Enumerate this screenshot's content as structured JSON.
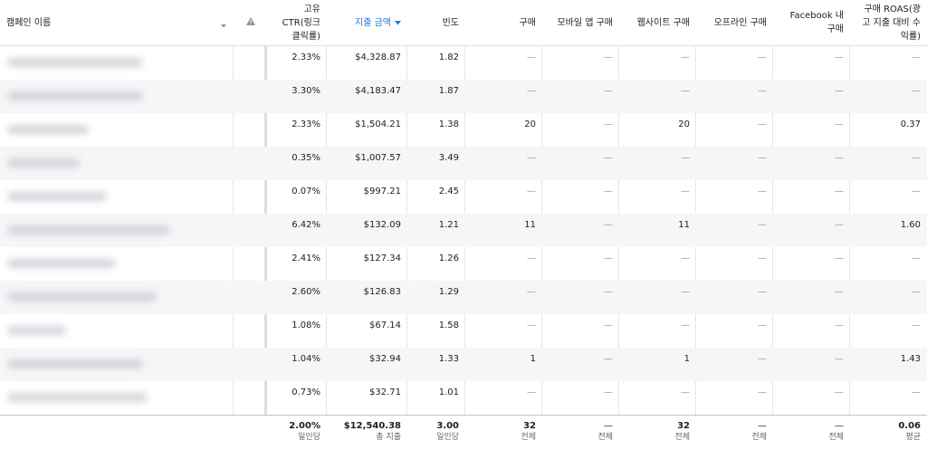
{
  "columns": {
    "campaign_name": "캠페인 이름",
    "ctr": "고유 CTR(링크 클릭률)",
    "spend": "지출 금액",
    "frequency": "빈도",
    "purchases": "구매",
    "mobile_app_purchases": "모바일 앱 구매",
    "website_purchases": "웹사이트 구매",
    "offline_purchases": "오프라인 구매",
    "facebook_purchases": "Facebook 내 구매",
    "roas": "구매 ROAS(광고 지출 대비 수익률)"
  },
  "dash": "—",
  "rows": [
    {
      "ctr": "2.33%",
      "spend": "$4,328.87",
      "freq": "1.82",
      "purchases": "—",
      "mobile": "—",
      "web": "—",
      "offline": "—",
      "fb": "—",
      "roas": "—"
    },
    {
      "ctr": "3.30%",
      "spend": "$4,183.47",
      "freq": "1.87",
      "purchases": "—",
      "mobile": "—",
      "web": "—",
      "offline": "—",
      "fb": "—",
      "roas": "—"
    },
    {
      "ctr": "2.33%",
      "spend": "$1,504.21",
      "freq": "1.38",
      "purchases": "20",
      "mobile": "—",
      "web": "20",
      "offline": "—",
      "fb": "—",
      "roas": "0.37"
    },
    {
      "ctr": "0.35%",
      "spend": "$1,007.57",
      "freq": "3.49",
      "purchases": "—",
      "mobile": "—",
      "web": "—",
      "offline": "—",
      "fb": "—",
      "roas": "—"
    },
    {
      "ctr": "0.07%",
      "spend": "$997.21",
      "freq": "2.45",
      "purchases": "—",
      "mobile": "—",
      "web": "—",
      "offline": "—",
      "fb": "—",
      "roas": "—"
    },
    {
      "ctr": "6.42%",
      "spend": "$132.09",
      "freq": "1.21",
      "purchases": "11",
      "mobile": "—",
      "web": "11",
      "offline": "—",
      "fb": "—",
      "roas": "1.60"
    },
    {
      "ctr": "2.41%",
      "spend": "$127.34",
      "freq": "1.26",
      "purchases": "—",
      "mobile": "—",
      "web": "—",
      "offline": "—",
      "fb": "—",
      "roas": "—"
    },
    {
      "ctr": "2.60%",
      "spend": "$126.83",
      "freq": "1.29",
      "purchases": "—",
      "mobile": "—",
      "web": "—",
      "offline": "—",
      "fb": "—",
      "roas": "—"
    },
    {
      "ctr": "1.08%",
      "spend": "$67.14",
      "freq": "1.58",
      "purchases": "—",
      "mobile": "—",
      "web": "—",
      "offline": "—",
      "fb": "—",
      "roas": "—"
    },
    {
      "ctr": "1.04%",
      "spend": "$32.94",
      "freq": "1.33",
      "purchases": "1",
      "mobile": "—",
      "web": "1",
      "offline": "—",
      "fb": "—",
      "roas": "1.43"
    },
    {
      "ctr": "0.73%",
      "spend": "$32.71",
      "freq": "1.01",
      "purchases": "—",
      "mobile": "—",
      "web": "—",
      "offline": "—",
      "fb": "—",
      "roas": "—"
    }
  ],
  "totals": {
    "ctr": {
      "value": "2.00%",
      "sub": "일인당"
    },
    "spend": {
      "value": "$12,540.38",
      "sub": "총 지출"
    },
    "freq": {
      "value": "3.00",
      "sub": "일인당"
    },
    "purchases": {
      "value": "32",
      "sub": "전체"
    },
    "mobile": {
      "value": "—",
      "sub": "전체"
    },
    "web": {
      "value": "32",
      "sub": "전체"
    },
    "offline": {
      "value": "—",
      "sub": "전체"
    },
    "fb": {
      "value": "—",
      "sub": "전체"
    },
    "roas": {
      "value": "0.06",
      "sub": "평균"
    }
  },
  "colors": {
    "sorted_header": "#1877f2",
    "alt_row": "#f5f6f7"
  },
  "icons": {
    "warning": "warning-icon",
    "sort": "caret-down-icon",
    "dropdown": "chevron-down-icon"
  }
}
